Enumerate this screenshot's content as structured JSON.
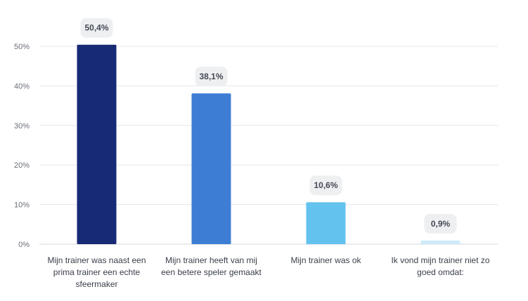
{
  "chart_data": {
    "type": "bar",
    "categories": [
      [
        "Mijn trainer was naast een",
        "prima trainer een echte",
        "sfeermaker"
      ],
      [
        "Mijn trainer heeft van mij",
        "een betere speler gemaakt"
      ],
      [
        "Mijn trainer was ok"
      ],
      [
        "Ik vond mijn trainer niet zo",
        "goed omdat:"
      ]
    ],
    "values": [
      50.4,
      38.1,
      10.6,
      0.9
    ],
    "value_labels": [
      "50,4%",
      "38,1%",
      "10,6%",
      "0,9%"
    ],
    "colors": [
      "#172a74",
      "#3d7ed4",
      "#63c3ee",
      "#cdeafa"
    ],
    "yticks": [
      0,
      10,
      20,
      30,
      40,
      50
    ],
    "ytick_labels": [
      "0%",
      "10%",
      "20%",
      "30%",
      "40%",
      "50%"
    ],
    "ylim": [
      0,
      50
    ],
    "grid": true,
    "title": "",
    "xlabel": "",
    "ylabel": ""
  }
}
